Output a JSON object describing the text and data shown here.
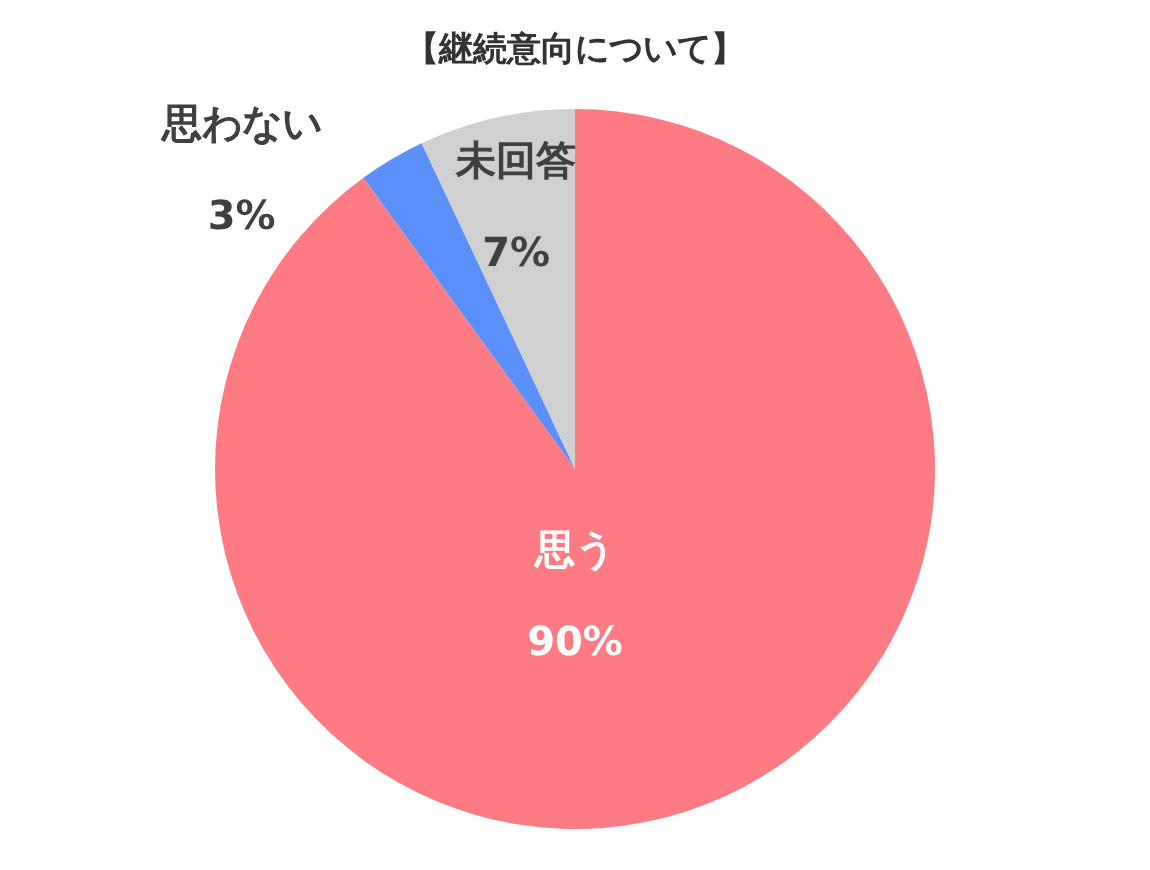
{
  "chart_data": {
    "type": "pie",
    "title": "【継続意向について】",
    "categories": [
      "思う",
      "思わない",
      "未回答"
    ],
    "values": [
      90,
      3,
      7
    ],
    "value_labels": [
      "90%",
      "3%",
      "7%"
    ],
    "colors": [
      "#ff7b84",
      "#5b8ff9",
      "#d0d0d0"
    ]
  }
}
